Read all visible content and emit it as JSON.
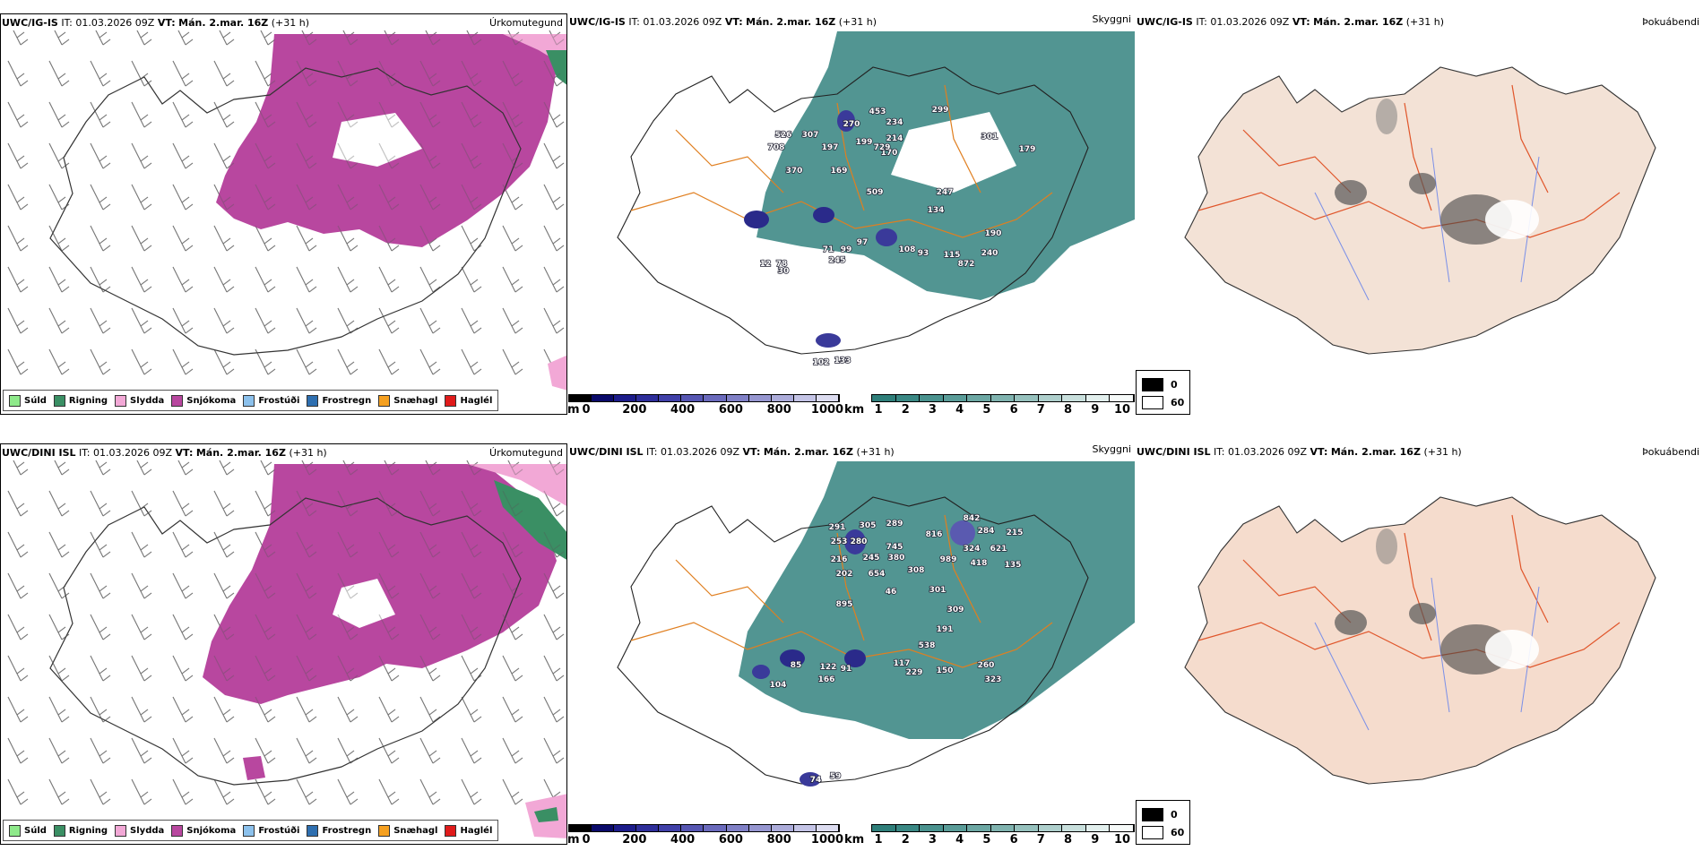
{
  "rows": [
    {
      "model": "UWC/IG-IS",
      "it_label": "IT:",
      "it_value": "01.03.2026 09Z",
      "vt_label": "VT:",
      "vt_value": "Mán. 2.mar. 16Z",
      "lead": "(+31 h)",
      "precip_peaks": [
        "526",
        "307",
        "270",
        "453",
        "234",
        "299",
        "708",
        "197",
        "199",
        "214",
        "301",
        "179",
        "370",
        "169",
        "170",
        "729",
        "509",
        "247",
        "134",
        "97",
        "71",
        "99",
        "245",
        "108",
        "93",
        "115",
        "190",
        "240",
        "872",
        "12",
        "78",
        "30",
        "102",
        "133"
      ]
    },
    {
      "model": "UWC/DINI ISL",
      "it_label": "IT:",
      "it_value": "01.03.2026 09Z",
      "vt_label": "VT:",
      "vt_value": "Mán. 2.mar. 16Z",
      "lead": "(+31 h)",
      "precip_peaks": [
        "291",
        "305",
        "289",
        "842",
        "284",
        "253",
        "280",
        "745",
        "816",
        "215",
        "216",
        "245",
        "380",
        "324",
        "621",
        "202",
        "654",
        "308",
        "989",
        "418",
        "135",
        "46",
        "301",
        "895",
        "309",
        "191",
        "538",
        "85",
        "122",
        "91",
        "117",
        "229",
        "150",
        "260",
        "323",
        "104",
        "166",
        "74",
        "59"
      ]
    }
  ],
  "panel_titles": {
    "precip": "Úrkomutegund",
    "cloud": "Skyggni",
    "fog": "Þokuábendi"
  },
  "precip_legend": [
    {
      "label": "Súld",
      "color": "#8ee98a"
    },
    {
      "label": "Rigning",
      "color": "#3a8f64"
    },
    {
      "label": "Slydda",
      "color": "#f2a8d6"
    },
    {
      "label": "Snjókoma",
      "color": "#b8479f"
    },
    {
      "label": "Frostúði",
      "color": "#8cc1ec"
    },
    {
      "label": "Frostregn",
      "color": "#2e6fb0"
    },
    {
      "label": "Snæhagl",
      "color": "#f5a020"
    },
    {
      "label": "Haglél",
      "color": "#e01b1b"
    }
  ],
  "elev_bar": {
    "unit": "m",
    "ticks": [
      "0",
      "200",
      "400",
      "600",
      "800",
      "1000"
    ],
    "colors": [
      "#000000",
      "#0a0a6a",
      "#1c1c8a",
      "#2e2e9a",
      "#4040a8",
      "#5656b2",
      "#6a6abc",
      "#8080c6",
      "#9696d0",
      "#acacda",
      "#c4c4e6",
      "#dcdcf0"
    ]
  },
  "km_bar": {
    "unit": "km",
    "ticks": [
      "1",
      "2",
      "3",
      "4",
      "5",
      "6",
      "7",
      "8",
      "9",
      "10"
    ],
    "colors": [
      "#2f7f7a",
      "#3a8884",
      "#4a928e",
      "#5a9c98",
      "#6ca7a3",
      "#80b3af",
      "#96c1bd",
      "#aecfcc",
      "#c8dfdc",
      "#e2efed",
      "#f6faf9"
    ]
  },
  "fog_legend": [
    {
      "label": "0",
      "color": "#000000"
    },
    {
      "label": "60",
      "color": "#ffffff"
    }
  ]
}
